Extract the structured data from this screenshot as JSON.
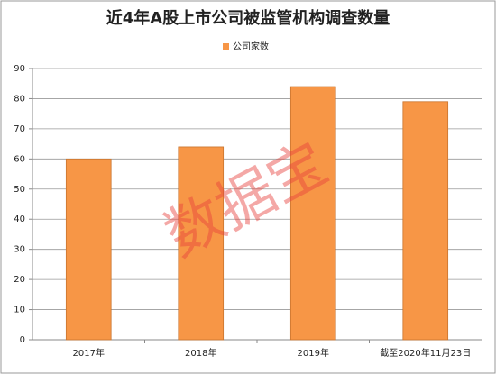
{
  "chart_data": {
    "type": "bar",
    "title": "近4年A股上市公司被监管机构调查数量",
    "categories": [
      "2017年",
      "2018年",
      "2019年",
      "截至2020年11月23日"
    ],
    "series": [
      {
        "name": "公司家数",
        "color": "#f79646",
        "values": [
          60,
          64,
          84,
          79
        ]
      }
    ],
    "ylim": [
      0,
      90
    ],
    "yticks": [
      0,
      10,
      20,
      30,
      40,
      50,
      60,
      70,
      80,
      90
    ],
    "grid": true,
    "legend": "top",
    "watermark": "数据宝"
  }
}
